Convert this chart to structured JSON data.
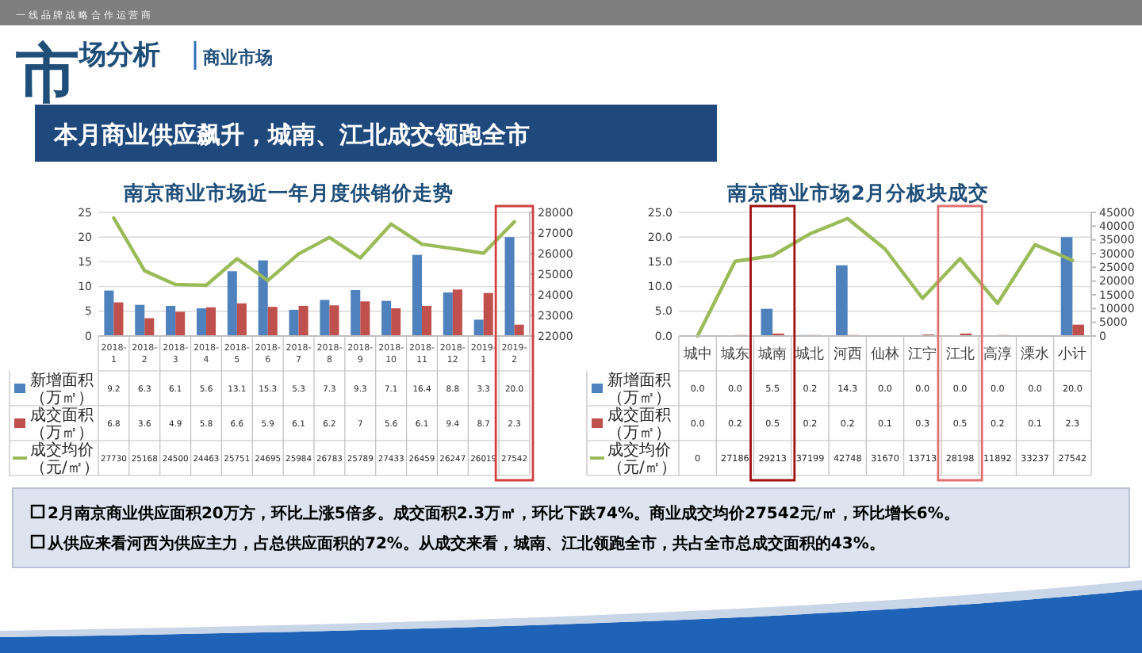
{
  "chart_data": [
    {
      "type": "bar",
      "title": "南京商业市场近一年月度供销价走势",
      "annotations": [
        "市场分析",
        "商业市场",
        "一 线 品 牌 战 略 合 作 运 营 商",
        "本月商业供应飙升，城南、江北成交领跑全市",
        "2月南京商业供应面积20万方，环比上涨5倍多。成交面积2.3万㎡，环比下跌74%。商业成交均价27542元/㎡，环比增长6%。",
        "从供应来看河西为供应主力，占总供应面积的72%。从成交来看，城南、江北领跑全市，共占全市总成交面积的43%。"
      ],
      "categories": [
        "2018-1",
        "2018-2",
        "2018-3",
        "2018-4",
        "2018-5",
        "2018-6",
        "2018-7",
        "2018-8",
        "2018-9",
        "2018-10",
        "2018-11",
        "2018-12",
        "2019-1",
        "2019-2"
      ],
      "series": [
        {
          "name": "新增面积（万㎡）",
          "color": "#4f81bd",
          "values": [
            9.2,
            6.3,
            6.1,
            5.6,
            13.1,
            15.3,
            5.3,
            7.3,
            9.3,
            7.1,
            16.4,
            8.8,
            3.3,
            20.0
          ],
          "value_labels": [
            "9.2",
            "6.3",
            "6.1",
            "5.6",
            "13.1",
            "15.3",
            "5.3",
            "7.3",
            "9.3",
            "7.1",
            "16.4",
            "8.8",
            "3.3",
            "20.0"
          ]
        },
        {
          "name": "成交面积（万㎡）",
          "color": "#c0504d",
          "values": [
            6.8,
            3.6,
            4.9,
            5.8,
            6.6,
            5.9,
            6.1,
            6.2,
            7,
            5.6,
            6.1,
            9.4,
            8.7,
            2.3
          ],
          "value_labels": [
            "6.8",
            "3.6",
            "4.9",
            "5.8",
            "6.6",
            "5.9",
            "6.1",
            "6.2",
            "7",
            "5.6",
            "6.1",
            "9.4",
            "8.7",
            "2.3"
          ]
        },
        {
          "name": "成交均价（元/㎡）",
          "type": "line",
          "axis": "y2",
          "color": "#9bbb59",
          "values": [
            27730,
            25168,
            24500,
            24463,
            25751,
            24695,
            25984,
            26783,
            25789,
            27433,
            26459,
            26247,
            26019,
            27542
          ],
          "value_labels": [
            "27730",
            "25168",
            "24500",
            "24463",
            "25751",
            "24695",
            "25984",
            "26783",
            "25789",
            "27433",
            "26459",
            "26247",
            "26019",
            "27542"
          ]
        }
      ],
      "ylim": [
        0,
        25
      ],
      "yticks": [
        0,
        5,
        10,
        15,
        20,
        25
      ],
      "y2lim": [
        22000,
        28000
      ],
      "y2ticks": [
        22000,
        23000,
        24000,
        25000,
        26000,
        27000,
        28000
      ],
      "grid": "y",
      "legend": "bottom"
    },
    {
      "type": "bar",
      "title": "南京商业市场2月分板块成交",
      "categories": [
        "城中",
        "城东",
        "城南",
        "城北",
        "河西",
        "仙林",
        "江宁",
        "江北",
        "高淳",
        "溧水",
        "小计"
      ],
      "series": [
        {
          "name": "新增面积（万㎡）",
          "color": "#4f81bd",
          "values": [
            0.0,
            0.0,
            5.5,
            0.2,
            14.3,
            0.0,
            0.0,
            0.0,
            0.0,
            0.0,
            20.0
          ],
          "value_labels": [
            "0.0",
            "0.0",
            "5.5",
            "0.2",
            "14.3",
            "0.0",
            "0.0",
            "0.0",
            "0.0",
            "0.0",
            "20.0"
          ]
        },
        {
          "name": "成交面积（万㎡）",
          "color": "#c0504d",
          "values": [
            0.0,
            0.2,
            0.5,
            0.2,
            0.2,
            0.1,
            0.3,
            0.5,
            0.2,
            0.1,
            2.3
          ],
          "value_labels": [
            "0.0",
            "0.2",
            "0.5",
            "0.2",
            "0.2",
            "0.1",
            "0.3",
            "0.5",
            "0.2",
            "0.1",
            "2.3"
          ]
        },
        {
          "name": "成交均价（元/㎡）",
          "type": "line",
          "axis": "y2",
          "color": "#9bbb59",
          "values": [
            0,
            27186,
            29213,
            37199,
            42748,
            31670,
            13713,
            28198,
            11892,
            33237,
            27542
          ],
          "value_labels": [
            "0",
            "27186",
            "29213",
            "37199",
            "42748",
            "31670",
            "13713",
            "28198",
            "11892",
            "33237",
            "27542"
          ]
        }
      ],
      "ylim": [
        0,
        25
      ],
      "yticks": [
        {
          "value": 0,
          "label": "0.0"
        },
        {
          "value": 5,
          "label": "5.0"
        },
        {
          "value": 10,
          "label": "10.0"
        },
        {
          "value": 15,
          "label": "15.0"
        },
        {
          "value": 20,
          "label": "20.0"
        },
        {
          "value": 25,
          "label": "25.0"
        }
      ],
      "y2lim": [
        0,
        45000
      ],
      "y2ticks": [
        0,
        5000,
        10000,
        15000,
        20000,
        25000,
        30000,
        35000,
        40000,
        45000
      ],
      "grid": "y",
      "legend": "bottom"
    }
  ]
}
